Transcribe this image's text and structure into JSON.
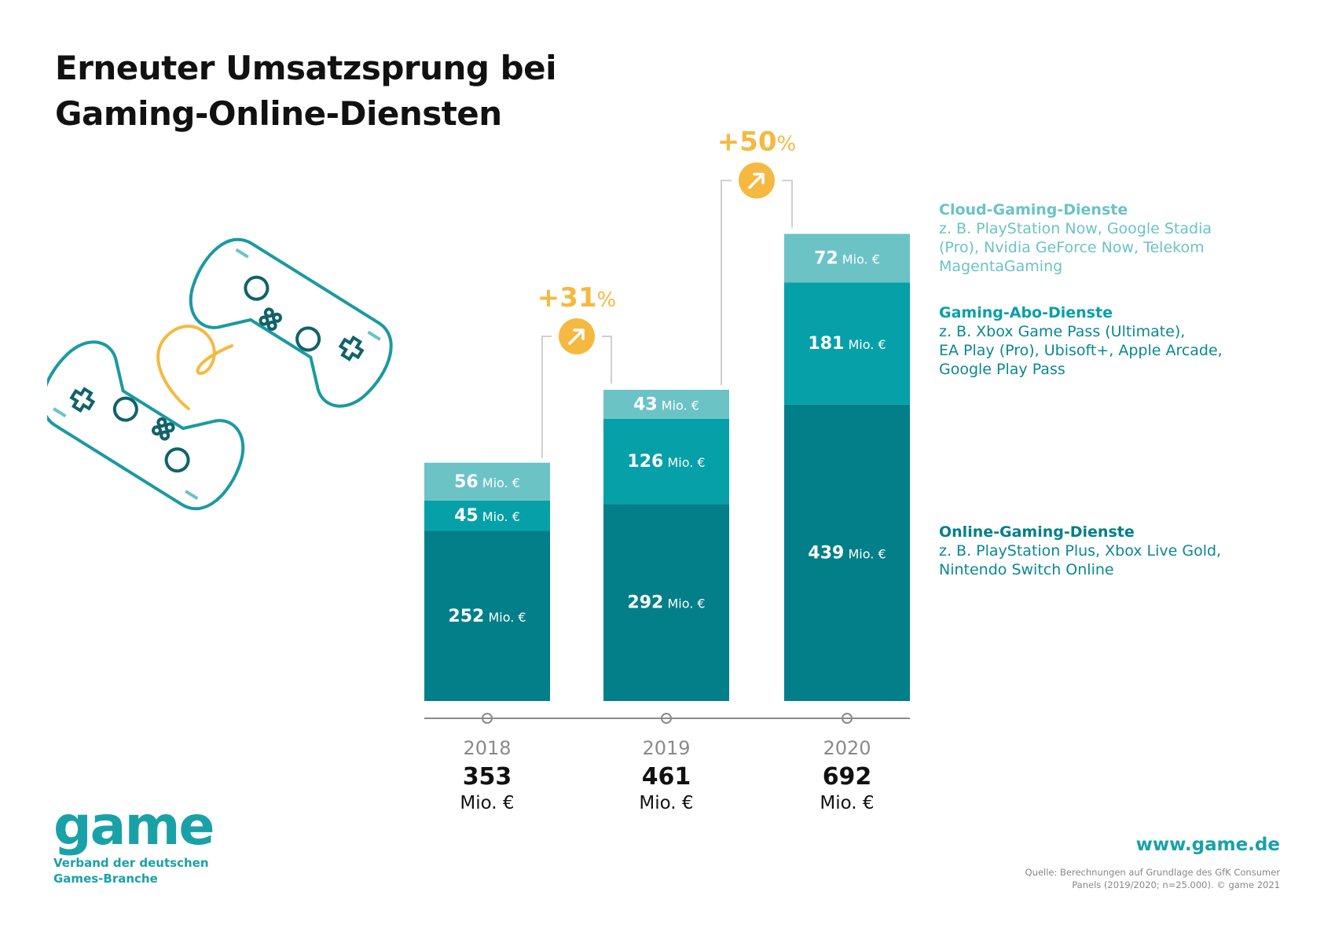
{
  "title_lines": [
    "Erneuter Umsatzsprung bei",
    "Gaming-Online-Diensten"
  ],
  "colors": {
    "online": "#027f89",
    "abo": "#06a0a8",
    "cloud": "#6bc3c6",
    "accent": "#f5b942",
    "controller": "#1a9aa0",
    "dark": "#11626a",
    "axis": "#8a8a8a"
  },
  "unit": "Mio. €",
  "chart_data": {
    "type": "bar",
    "stacked": true,
    "categories": [
      "2018",
      "2019",
      "2020"
    ],
    "series": [
      {
        "name": "Online-Gaming-Dienste",
        "values": [
          252,
          292,
          439
        ]
      },
      {
        "name": "Gaming-Abo-Dienste",
        "values": [
          45,
          126,
          181
        ]
      },
      {
        "name": "Cloud-Gaming-Dienste",
        "values": [
          56,
          43,
          72
        ]
      }
    ],
    "totals": [
      353,
      461,
      692
    ],
    "growth": [
      "+31",
      "+50"
    ],
    "growth_unit": "%",
    "legend_position": "right"
  },
  "legend": [
    {
      "title": "Cloud-Gaming-Dienste",
      "desc": [
        "z. B. PlayStation Now, Google Stadia",
        "(Pro), Nvidia GeForce Now, Telekom",
        "MagentaGaming"
      ]
    },
    {
      "title": "Gaming-Abo-Dienste",
      "desc": [
        "z. B. Xbox Game Pass (Ultimate),",
        "EA Play (Pro), Ubisoft+, Apple Arcade,",
        "Google Play Pass"
      ]
    },
    {
      "title": "Online-Gaming-Dienste",
      "desc": [
        "z. B. PlayStation Plus, Xbox Live Gold,",
        "Nintendo Switch Online"
      ]
    }
  ],
  "logo": {
    "word": "game",
    "sub": "Verband der deutschen Games-Branche"
  },
  "website": "www.game.de",
  "source": "Quelle: Berechnungen auf Grundlage des GfK Consumer Panels (2019/2020; n=25.000). © game 2021"
}
